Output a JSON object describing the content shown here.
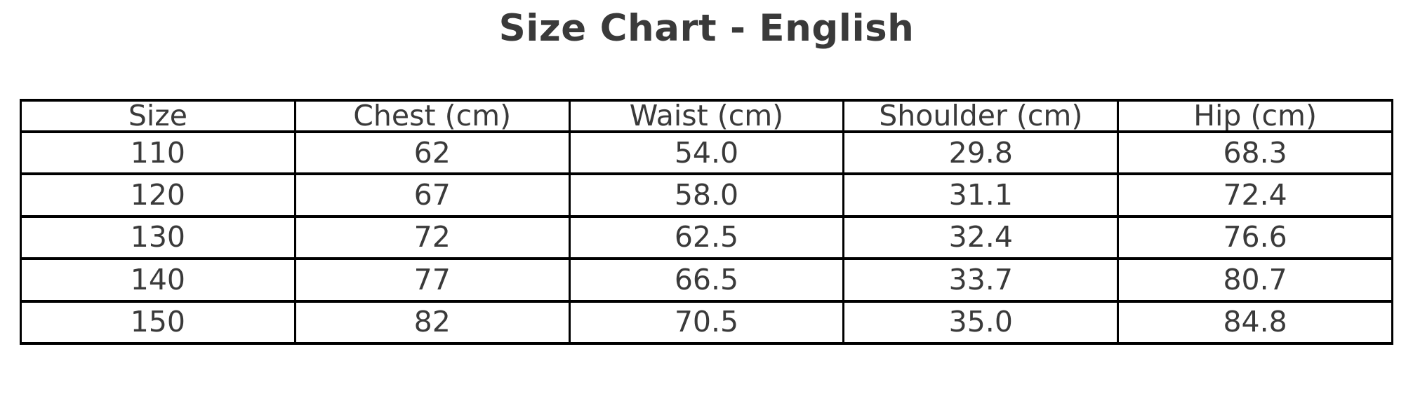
{
  "title": "Size Chart - English",
  "colors": {
    "text": "#3a3a3a",
    "border": "#000000",
    "background": "#ffffff"
  },
  "chart_data": {
    "type": "table",
    "title": "Size Chart - English",
    "columns": [
      "Size",
      "Chest (cm)",
      "Waist (cm)",
      "Shoulder (cm)",
      "Hip (cm)"
    ],
    "rows": [
      [
        "110",
        "62",
        "54.0",
        "29.8",
        "68.3"
      ],
      [
        "120",
        "67",
        "58.0",
        "31.1",
        "72.4"
      ],
      [
        "130",
        "72",
        "62.5",
        "32.4",
        "76.6"
      ],
      [
        "140",
        "77",
        "66.5",
        "33.7",
        "80.7"
      ],
      [
        "150",
        "82",
        "70.5",
        "35.0",
        "84.8"
      ]
    ]
  }
}
